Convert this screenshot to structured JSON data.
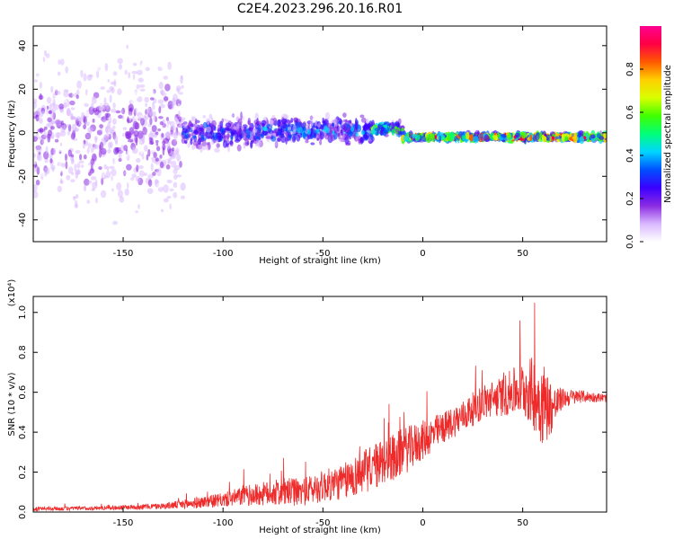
{
  "title": "C2E4.2023.296.20.16.R01",
  "chart_data": [
    {
      "type": "heatmap",
      "xlabel": "Height of straight line (km)",
      "ylabel": "Frequency (Hz)",
      "xlim": [
        -195,
        92
      ],
      "ylim": [
        -50,
        49
      ],
      "xticks": [
        -150,
        -100,
        -50,
        0,
        50
      ],
      "yticks": [
        -40,
        -20,
        0,
        20,
        40
      ],
      "colorbar": {
        "label": "Normalized spectral amplitude",
        "range": [
          0,
          1
        ],
        "ticks": [
          "0.0",
          "0.2",
          "0.4",
          "0.6",
          "0.8"
        ],
        "colormap": [
          "#ffffff",
          "#d9b8ff",
          "#8a2be2",
          "#3a00ff",
          "#0050ff",
          "#00d5ff",
          "#00ff7a",
          "#40ff00",
          "#d8ff00",
          "#ffd000",
          "#ff5a00",
          "#ff0044",
          "#ff0090"
        ]
      },
      "bands": [
        {
          "x": [
            -195,
            -120
          ],
          "center": 0,
          "spread": 49,
          "peak": 0.2
        },
        {
          "x": [
            -120,
            -80
          ],
          "center": 0,
          "spread": 10,
          "peak": 0.35
        },
        {
          "x": [
            -80,
            -25
          ],
          "center": 1,
          "spread": 8,
          "peak": 0.4
        },
        {
          "x": [
            -25,
            -10
          ],
          "center": 2,
          "spread": 4,
          "peak": 0.6
        },
        {
          "x": [
            -10,
            92
          ],
          "center": -2,
          "spread": 2,
          "peak": 0.9
        }
      ]
    },
    {
      "type": "line",
      "xlabel": "Height of straight line (km)",
      "ylabel": "SNR (10 * v/v)",
      "yscale_label": "(x10⁴)",
      "xlim": [
        -195,
        92
      ],
      "ylim": [
        0,
        1.08
      ],
      "xticks": [
        -150,
        -100,
        -50,
        0,
        50
      ],
      "yticks": [
        "0.0",
        "0.2",
        "0.4",
        "0.6",
        "0.8",
        "1.0"
      ],
      "series": [
        {
          "color": "#ee2b2b",
          "x": [
            -195,
            -160,
            -130,
            -118,
            -110,
            -100,
            -90,
            -80,
            -70,
            -60,
            -50,
            -40,
            -30,
            -20,
            -10,
            0,
            10,
            20,
            30,
            40,
            50,
            55,
            60,
            65,
            70,
            80,
            92
          ],
          "y": [
            0.015,
            0.02,
            0.03,
            0.04,
            0.05,
            0.06,
            0.08,
            0.09,
            0.1,
            0.1,
            0.13,
            0.15,
            0.2,
            0.25,
            0.3,
            0.36,
            0.42,
            0.48,
            0.55,
            0.58,
            0.62,
            0.6,
            0.55,
            0.52,
            0.57,
            0.58,
            0.57
          ],
          "noise": [
            0.01,
            0.01,
            0.015,
            0.025,
            0.03,
            0.035,
            0.05,
            0.06,
            0.07,
            0.07,
            0.08,
            0.09,
            0.11,
            0.12,
            0.12,
            0.1,
            0.08,
            0.08,
            0.09,
            0.1,
            0.14,
            0.18,
            0.22,
            0.12,
            0.05,
            0.03,
            0.02
          ]
        }
      ]
    }
  ]
}
